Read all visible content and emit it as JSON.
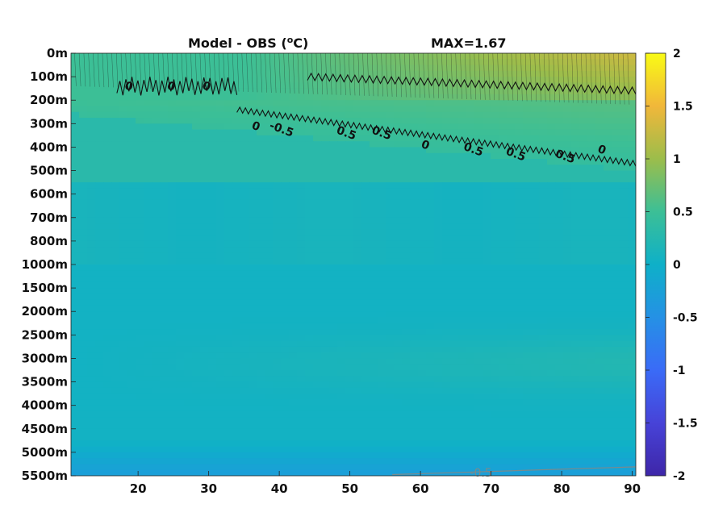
{
  "chart_data": {
    "type": "heatmap",
    "title": "Model - OBS (",
    "title_superscript": "o",
    "title_suffix": "C)",
    "max_label": "MAX=1.67",
    "xlabel": "",
    "ylabel": "",
    "x_ticks": [
      "20",
      "30",
      "40",
      "50",
      "60",
      "70",
      "80",
      "90"
    ],
    "x_tick_values": [
      20,
      30,
      40,
      50,
      60,
      70,
      80,
      90
    ],
    "xlim": [
      10.5,
      90.5
    ],
    "y_ticks": [
      "0m",
      "100m",
      "200m",
      "300m",
      "400m",
      "500m",
      "600m",
      "700m",
      "800m",
      "1000m",
      "1500m",
      "2000m",
      "2500m",
      "3000m",
      "3500m",
      "4000m",
      "4500m",
      "5000m",
      "5500m"
    ],
    "colorbar": {
      "ticks": [
        "2",
        "1.5",
        "1",
        "0.5",
        "0",
        "-0.5",
        "-1",
        "-1.5",
        "-2"
      ],
      "range": [
        -2,
        2
      ],
      "colormap": "parula"
    },
    "contour_levels_labeled": [
      "0",
      "0.5",
      "-0.5"
    ],
    "contour_labels": {
      "zero": "0",
      "half": "0.5",
      "neg_half": "-0.5"
    },
    "field_summary": {
      "surface_0_200m_range": [
        0.5,
        1.3
      ],
      "upper_300_500m": 0.3,
      "mid_600_1000m": 0.1,
      "deep_1500_4500m": 0.05,
      "bottom_5500m": -0.3
    },
    "grid": false,
    "colors": {
      "warm": "#e8b236",
      "mid": "#3fbf8a",
      "neutral": "#1db6ae",
      "cool": "#2b9fd5"
    }
  }
}
